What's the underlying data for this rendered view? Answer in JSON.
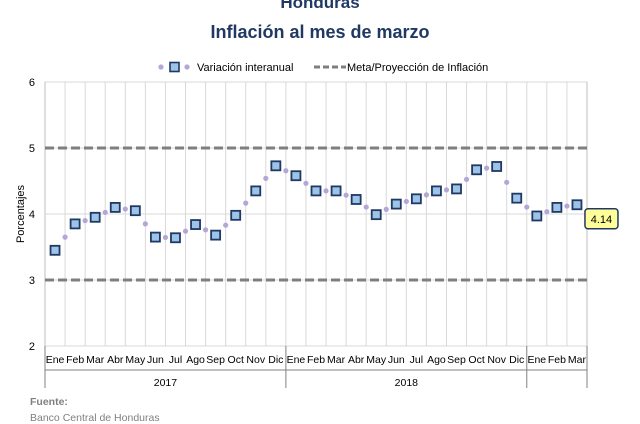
{
  "header": {
    "country": "Honduras",
    "subtitle": "Inflación al mes de marzo"
  },
  "footer": {
    "source_label": "Fuente:",
    "source_value": "Banco Central de Honduras"
  },
  "chart_data": {
    "type": "line",
    "ylabel": "Porcentajes",
    "ylim": [
      2,
      6
    ],
    "yticks": [
      "2",
      "3",
      "4",
      "5",
      "6"
    ],
    "grid": true,
    "legend_position": "top",
    "years": [
      "2017",
      "2018"
    ],
    "categories": [
      "Ene",
      "Feb",
      "Mar",
      "Abr",
      "May",
      "Jun",
      "Jul",
      "Ago",
      "Sep",
      "Oct",
      "Nov",
      "Dic",
      "Ene",
      "Feb",
      "Mar",
      "Abr",
      "May",
      "Jun",
      "Jul",
      "Ago",
      "Sep",
      "Oct",
      "Nov",
      "Dic",
      "Ene",
      "Feb",
      "Mar"
    ],
    "series": [
      {
        "name": "Variación interanual",
        "style": "dotted-with-square-markers",
        "color": "#b4a7d6",
        "marker_color": "#1f3864",
        "values": [
          3.45,
          3.85,
          3.95,
          4.1,
          4.05,
          3.65,
          3.64,
          3.84,
          3.68,
          3.98,
          4.35,
          4.73,
          4.58,
          4.35,
          4.35,
          4.22,
          3.99,
          4.15,
          4.23,
          4.35,
          4.38,
          4.67,
          4.72,
          4.24,
          3.97,
          4.1,
          4.14
        ]
      },
      {
        "name": "Meta/Proyección de Inflación",
        "style": "dashed-band",
        "color": "#7f7f7f",
        "upper": 5,
        "lower": 3
      }
    ],
    "callout": {
      "index": 26,
      "label": "4.14",
      "fill": "#ffff99"
    }
  }
}
